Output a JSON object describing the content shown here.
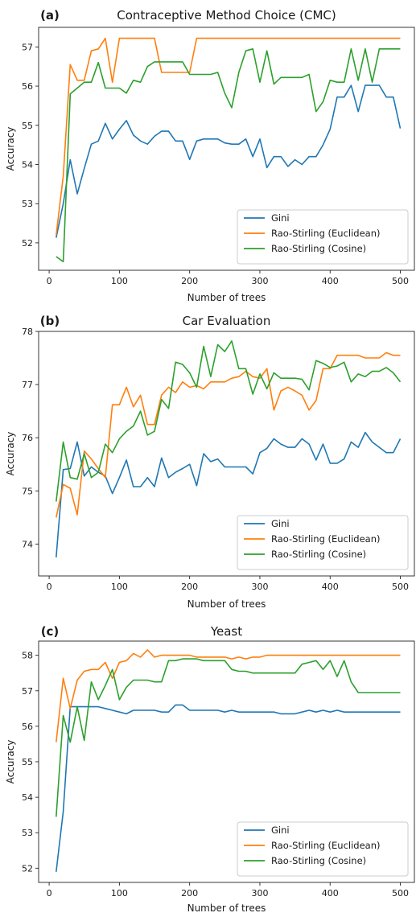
{
  "chart_data": [
    {
      "type": "line",
      "panel_label": "(a)",
      "title": "Contraceptive Method Choice (CMC)",
      "xlabel": "Number of trees",
      "ylabel": "Accuracy",
      "xlim": [
        -15,
        520
      ],
      "ylim": [
        51.3,
        57.5
      ],
      "xticks": [
        0,
        100,
        200,
        300,
        400,
        500
      ],
      "yticks": [
        52,
        53,
        54,
        55,
        56,
        57
      ],
      "legend_position": "lower-right",
      "grid": false,
      "x": [
        10,
        20,
        30,
        40,
        50,
        60,
        70,
        80,
        90,
        100,
        110,
        120,
        130,
        140,
        150,
        160,
        170,
        180,
        190,
        200,
        210,
        220,
        230,
        240,
        250,
        260,
        270,
        280,
        290,
        300,
        310,
        320,
        330,
        340,
        350,
        360,
        370,
        380,
        390,
        400,
        410,
        420,
        430,
        440,
        450,
        460,
        470,
        480,
        490,
        500
      ],
      "series": [
        {
          "name": "Gini",
          "color": "#1f77b4",
          "values": [
            52.13,
            53.0,
            54.12,
            53.25,
            53.9,
            54.52,
            54.6,
            55.05,
            54.65,
            54.9,
            55.12,
            54.75,
            54.6,
            54.52,
            54.72,
            54.85,
            54.85,
            54.6,
            54.6,
            54.13,
            54.6,
            54.65,
            54.65,
            54.65,
            54.55,
            54.52,
            54.52,
            54.65,
            54.2,
            54.65,
            53.92,
            54.2,
            54.2,
            53.95,
            54.12,
            54.0,
            54.2,
            54.2,
            54.5,
            54.9,
            55.72,
            55.72,
            56.02,
            55.35,
            56.02,
            56.02,
            56.02,
            55.72,
            55.72,
            54.92
          ]
        },
        {
          "name": "Rao-Stirling (Euclidean)",
          "color": "#ff7f0e",
          "values": [
            52.2,
            53.7,
            56.55,
            56.15,
            56.15,
            56.9,
            56.95,
            57.22,
            56.1,
            57.22,
            57.22,
            57.22,
            57.22,
            57.22,
            57.22,
            56.35,
            56.35,
            56.35,
            56.35,
            56.35,
            57.22,
            57.22,
            57.22,
            57.22,
            57.22,
            57.22,
            57.22,
            57.22,
            57.22,
            57.22,
            57.22,
            57.22,
            57.22,
            57.22,
            57.22,
            57.22,
            57.22,
            57.22,
            57.22,
            57.22,
            57.22,
            57.22,
            57.22,
            57.22,
            57.22,
            57.22,
            57.22,
            57.22,
            57.22,
            57.22
          ]
        },
        {
          "name": "Rao-Stirling (Cosine)",
          "color": "#2ca02c",
          "values": [
            51.65,
            51.52,
            55.8,
            55.95,
            56.1,
            56.1,
            56.6,
            55.95,
            55.95,
            55.95,
            55.82,
            56.15,
            56.1,
            56.5,
            56.62,
            56.62,
            56.62,
            56.62,
            56.62,
            56.3,
            56.3,
            56.3,
            56.3,
            56.35,
            55.82,
            55.45,
            56.35,
            56.9,
            56.95,
            56.1,
            56.9,
            56.05,
            56.22,
            56.22,
            56.22,
            56.22,
            56.3,
            55.35,
            55.6,
            56.15,
            56.1,
            56.1,
            56.95,
            56.15,
            56.95,
            56.1,
            56.95,
            56.95,
            56.95,
            56.95
          ]
        }
      ]
    },
    {
      "type": "line",
      "panel_label": "(b)",
      "title": "Car Evaluation",
      "xlabel": "Number of trees",
      "ylabel": "Accuracy",
      "xlim": [
        -15,
        520
      ],
      "ylim": [
        73.4,
        78.0
      ],
      "xticks": [
        0,
        100,
        200,
        300,
        400,
        500
      ],
      "yticks": [
        74,
        75,
        76,
        77,
        78
      ],
      "legend_position": "lower-right",
      "grid": false,
      "x": [
        10,
        20,
        30,
        40,
        50,
        60,
        70,
        80,
        90,
        100,
        110,
        120,
        130,
        140,
        150,
        160,
        170,
        180,
        190,
        200,
        210,
        220,
        230,
        240,
        250,
        260,
        270,
        280,
        290,
        300,
        310,
        320,
        330,
        340,
        350,
        360,
        370,
        380,
        390,
        400,
        410,
        420,
        430,
        440,
        450,
        460,
        470,
        480,
        490,
        500
      ],
      "series": [
        {
          "name": "Gini",
          "color": "#1f77b4",
          "values": [
            73.75,
            75.4,
            75.42,
            75.92,
            75.28,
            75.45,
            75.35,
            75.28,
            74.95,
            75.25,
            75.58,
            75.08,
            75.08,
            75.25,
            75.08,
            75.62,
            75.25,
            75.35,
            75.42,
            75.5,
            75.1,
            75.7,
            75.55,
            75.6,
            75.45,
            75.45,
            75.45,
            75.45,
            75.32,
            75.72,
            75.8,
            75.98,
            75.88,
            75.82,
            75.82,
            75.98,
            75.88,
            75.58,
            75.88,
            75.52,
            75.52,
            75.6,
            75.92,
            75.82,
            76.1,
            75.92,
            75.82,
            75.72,
            75.72,
            75.98
          ]
        },
        {
          "name": "Rao-Stirling (Euclidean)",
          "color": "#ff7f0e",
          "values": [
            74.5,
            75.12,
            75.05,
            74.55,
            75.75,
            75.6,
            75.42,
            75.25,
            76.62,
            76.62,
            76.95,
            76.58,
            76.8,
            76.25,
            76.25,
            76.8,
            76.95,
            76.85,
            77.05,
            76.95,
            76.98,
            76.92,
            77.05,
            77.05,
            77.05,
            77.12,
            77.15,
            77.25,
            77.15,
            77.12,
            77.3,
            76.52,
            76.88,
            76.95,
            76.88,
            76.8,
            76.52,
            76.7,
            77.3,
            77.3,
            77.55,
            77.55,
            77.55,
            77.55,
            77.5,
            77.5,
            77.5,
            77.6,
            77.55,
            77.55
          ]
        },
        {
          "name": "Rao-Stirling (Cosine)",
          "color": "#2ca02c",
          "values": [
            74.8,
            75.92,
            75.25,
            75.22,
            75.7,
            75.25,
            75.35,
            75.88,
            75.72,
            75.98,
            76.12,
            76.22,
            76.5,
            76.05,
            76.12,
            76.72,
            76.55,
            77.42,
            77.38,
            77.22,
            76.95,
            77.72,
            77.15,
            77.75,
            77.62,
            77.82,
            77.3,
            77.3,
            76.82,
            77.2,
            76.92,
            77.22,
            77.12,
            77.12,
            77.12,
            77.1,
            76.9,
            77.45,
            77.4,
            77.32,
            77.35,
            77.42,
            77.05,
            77.2,
            77.15,
            77.25,
            77.25,
            77.32,
            77.22,
            77.05
          ]
        }
      ]
    },
    {
      "type": "line",
      "panel_label": "(c)",
      "title": "Yeast",
      "xlabel": "Number of trees",
      "ylabel": "Accuracy",
      "xlim": [
        -15,
        520
      ],
      "ylim": [
        51.6,
        58.4
      ],
      "xticks": [
        0,
        100,
        200,
        300,
        400,
        500
      ],
      "yticks": [
        52,
        53,
        54,
        55,
        56,
        57,
        58
      ],
      "legend_position": "lower-right",
      "grid": false,
      "x": [
        10,
        20,
        30,
        40,
        50,
        60,
        70,
        80,
        90,
        100,
        110,
        120,
        130,
        140,
        150,
        160,
        170,
        180,
        190,
        200,
        210,
        220,
        230,
        240,
        250,
        260,
        270,
        280,
        290,
        300,
        310,
        320,
        330,
        340,
        350,
        360,
        370,
        380,
        390,
        400,
        410,
        420,
        430,
        440,
        450,
        460,
        470,
        480,
        490,
        500
      ],
      "series": [
        {
          "name": "Gini",
          "color": "#1f77b4",
          "values": [
            51.9,
            53.6,
            56.55,
            56.55,
            56.55,
            56.55,
            56.55,
            56.5,
            56.45,
            56.4,
            56.35,
            56.45,
            56.45,
            56.45,
            56.45,
            56.4,
            56.4,
            56.6,
            56.6,
            56.45,
            56.45,
            56.45,
            56.45,
            56.45,
            56.4,
            56.45,
            56.4,
            56.4,
            56.4,
            56.4,
            56.4,
            56.4,
            56.35,
            56.35,
            56.35,
            56.4,
            56.45,
            56.4,
            56.45,
            56.4,
            56.45,
            56.4,
            56.4,
            56.4,
            56.4,
            56.4,
            56.4,
            56.4,
            56.4,
            56.4
          ]
        },
        {
          "name": "Rao-Stirling (Euclidean)",
          "color": "#ff7f0e",
          "values": [
            55.55,
            57.35,
            56.5,
            57.3,
            57.55,
            57.6,
            57.6,
            57.8,
            57.35,
            57.8,
            57.85,
            58.05,
            57.95,
            58.15,
            57.95,
            58.0,
            58.0,
            58.0,
            58.0,
            58.0,
            57.95,
            57.95,
            57.95,
            57.95,
            57.95,
            57.9,
            57.95,
            57.9,
            57.95,
            57.95,
            58.0,
            58.0,
            58.0,
            58.0,
            58.0,
            58.0,
            58.0,
            58.0,
            58.0,
            58.0,
            58.0,
            58.0,
            58.0,
            58.0,
            58.0,
            58.0,
            58.0,
            58.0,
            58.0,
            58.0
          ]
        },
        {
          "name": "Rao-Stirling (Cosine)",
          "color": "#2ca02c",
          "values": [
            53.45,
            56.3,
            55.55,
            56.55,
            55.6,
            57.25,
            56.75,
            57.15,
            57.6,
            56.75,
            57.1,
            57.3,
            57.3,
            57.3,
            57.25,
            57.25,
            57.85,
            57.85,
            57.9,
            57.9,
            57.9,
            57.85,
            57.85,
            57.85,
            57.85,
            57.6,
            57.55,
            57.55,
            57.5,
            57.5,
            57.5,
            57.5,
            57.5,
            57.5,
            57.5,
            57.75,
            57.8,
            57.85,
            57.6,
            57.85,
            57.4,
            57.85,
            57.25,
            56.95,
            56.95,
            56.95,
            56.95,
            56.95,
            56.95,
            56.95
          ]
        }
      ]
    }
  ]
}
